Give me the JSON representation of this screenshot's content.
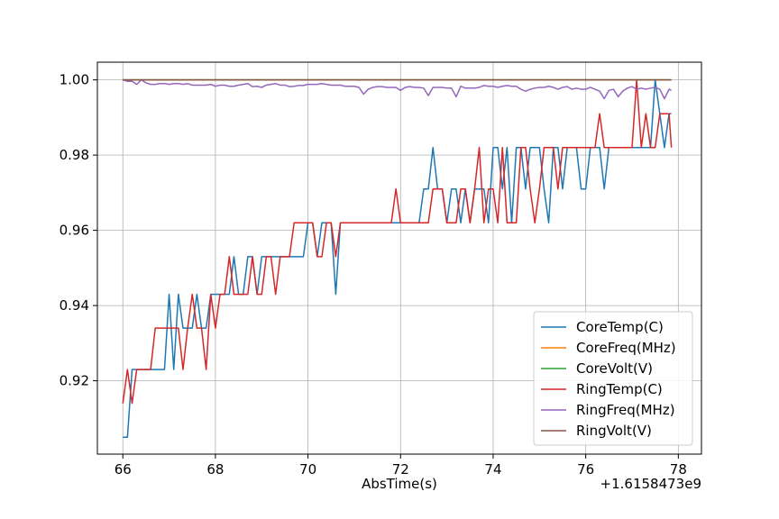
{
  "chart_data": {
    "type": "line",
    "xlabel": "AbsTime(s)",
    "x_offset_label": "+1.6158473e9",
    "xlim": [
      65.45,
      78.5
    ],
    "ylim": [
      0.9005,
      1.0047
    ],
    "xticks": [
      66,
      68,
      70,
      72,
      74,
      76,
      78
    ],
    "yticks": [
      0.92,
      0.94,
      0.96,
      0.98,
      1.0
    ],
    "ytick_labels": [
      "0.92",
      "0.94",
      "0.96",
      "0.98",
      "1.00"
    ],
    "grid": true,
    "legend_position": "lower-right",
    "x": [
      66.0,
      66.1,
      66.2,
      66.3,
      66.4,
      66.5,
      66.6,
      66.7,
      66.8,
      66.9,
      67.0,
      67.1,
      67.2,
      67.3,
      67.4,
      67.5,
      67.6,
      67.7,
      67.8,
      67.9,
      68.0,
      68.1,
      68.2,
      68.3,
      68.4,
      68.5,
      68.6,
      68.7,
      68.8,
      68.9,
      69.0,
      69.1,
      69.2,
      69.3,
      69.4,
      69.5,
      69.6,
      69.7,
      69.8,
      69.9,
      70.0,
      70.1,
      70.2,
      70.3,
      70.4,
      70.5,
      70.6,
      70.7,
      70.8,
      70.9,
      71.0,
      71.1,
      71.2,
      71.3,
      71.4,
      71.5,
      71.6,
      71.7,
      71.8,
      71.9,
      72.0,
      72.1,
      72.2,
      72.3,
      72.4,
      72.5,
      72.6,
      72.7,
      72.8,
      72.9,
      73.0,
      73.1,
      73.2,
      73.3,
      73.4,
      73.5,
      73.6,
      73.7,
      73.8,
      73.9,
      74.0,
      74.1,
      74.2,
      74.3,
      74.4,
      74.5,
      74.6,
      74.7,
      74.8,
      74.9,
      75.0,
      75.1,
      75.2,
      75.3,
      75.4,
      75.5,
      75.6,
      75.7,
      75.8,
      75.9,
      76.0,
      76.1,
      76.2,
      76.3,
      76.4,
      76.5,
      76.6,
      76.7,
      76.8,
      76.9,
      77.0,
      77.1,
      77.2,
      77.3,
      77.4,
      77.5,
      77.6,
      77.7,
      77.8,
      77.85
    ],
    "series": [
      {
        "name": "CoreTemp(C)",
        "color": "#1f77b4",
        "values": [
          0.905,
          0.905,
          0.923,
          0.923,
          0.923,
          0.923,
          0.923,
          0.923,
          0.923,
          0.923,
          0.943,
          0.923,
          0.943,
          0.934,
          0.934,
          0.934,
          0.943,
          0.934,
          0.934,
          0.943,
          0.943,
          0.943,
          0.943,
          0.943,
          0.953,
          0.943,
          0.943,
          0.953,
          0.953,
          0.943,
          0.953,
          0.953,
          0.953,
          0.953,
          0.953,
          0.953,
          0.953,
          0.953,
          0.953,
          0.953,
          0.962,
          0.962,
          0.953,
          0.962,
          0.962,
          0.962,
          0.943,
          0.962,
          0.962,
          0.962,
          0.962,
          0.962,
          0.962,
          0.962,
          0.962,
          0.962,
          0.962,
          0.962,
          0.962,
          0.962,
          0.962,
          0.962,
          0.962,
          0.962,
          0.962,
          0.971,
          0.971,
          0.982,
          0.971,
          0.971,
          0.962,
          0.971,
          0.971,
          0.962,
          0.971,
          0.962,
          0.971,
          0.971,
          0.971,
          0.962,
          0.982,
          0.982,
          0.971,
          0.982,
          0.962,
          0.982,
          0.982,
          0.971,
          0.982,
          0.982,
          0.982,
          0.971,
          0.962,
          0.982,
          0.982,
          0.971,
          0.982,
          0.982,
          0.982,
          0.971,
          0.971,
          0.982,
          0.982,
          0.982,
          0.971,
          0.982,
          0.982,
          0.982,
          0.982,
          0.982,
          0.982,
          0.982,
          0.982,
          0.982,
          0.982,
          1.0,
          0.991,
          0.982,
          0.991,
          0.991
        ]
      },
      {
        "name": "CoreFreq(MHz)",
        "color": "#ff7f0e",
        "values": [
          1.0,
          1.0,
          1.0,
          1.0,
          1.0,
          1.0,
          1.0,
          1.0,
          1.0,
          1.0,
          1.0,
          1.0,
          1.0,
          1.0,
          1.0,
          1.0,
          1.0,
          1.0,
          1.0,
          1.0,
          1.0,
          1.0,
          1.0,
          1.0,
          1.0,
          1.0,
          1.0,
          1.0,
          1.0,
          1.0,
          1.0,
          1.0,
          1.0,
          1.0,
          1.0,
          1.0,
          1.0,
          1.0,
          1.0,
          1.0,
          1.0,
          1.0,
          1.0,
          1.0,
          1.0,
          1.0,
          1.0,
          1.0,
          1.0,
          1.0,
          1.0,
          1.0,
          1.0,
          1.0,
          1.0,
          1.0,
          1.0,
          1.0,
          1.0,
          1.0,
          1.0,
          1.0,
          1.0,
          1.0,
          1.0,
          1.0,
          1.0,
          1.0,
          1.0,
          1.0,
          1.0,
          1.0,
          1.0,
          1.0,
          1.0,
          1.0,
          1.0,
          1.0,
          1.0,
          1.0,
          1.0,
          1.0,
          1.0,
          1.0,
          1.0,
          1.0,
          1.0,
          1.0,
          1.0,
          1.0,
          1.0,
          1.0,
          1.0,
          1.0,
          1.0,
          1.0,
          1.0,
          1.0,
          1.0,
          1.0,
          1.0,
          1.0,
          1.0,
          1.0,
          1.0,
          1.0,
          1.0,
          1.0,
          1.0,
          1.0,
          1.0,
          1.0,
          1.0,
          1.0,
          1.0,
          1.0,
          1.0,
          1.0,
          1.0,
          1.0
        ]
      },
      {
        "name": "CoreVolt(V)",
        "color": "#2ca02c",
        "values": [
          1.0,
          1.0,
          1.0,
          1.0,
          1.0,
          1.0,
          1.0,
          1.0,
          1.0,
          1.0,
          1.0,
          1.0,
          1.0,
          1.0,
          1.0,
          1.0,
          1.0,
          1.0,
          1.0,
          1.0,
          1.0,
          1.0,
          1.0,
          1.0,
          1.0,
          1.0,
          1.0,
          1.0,
          1.0,
          1.0,
          1.0,
          1.0,
          1.0,
          1.0,
          1.0,
          1.0,
          1.0,
          1.0,
          1.0,
          1.0,
          1.0,
          1.0,
          1.0,
          1.0,
          1.0,
          1.0,
          1.0,
          1.0,
          1.0,
          1.0,
          1.0,
          1.0,
          1.0,
          1.0,
          1.0,
          1.0,
          1.0,
          1.0,
          1.0,
          1.0,
          1.0,
          1.0,
          1.0,
          1.0,
          1.0,
          1.0,
          1.0,
          1.0,
          1.0,
          1.0,
          1.0,
          1.0,
          1.0,
          1.0,
          1.0,
          1.0,
          1.0,
          1.0,
          1.0,
          1.0,
          1.0,
          1.0,
          1.0,
          1.0,
          1.0,
          1.0,
          1.0,
          1.0,
          1.0,
          1.0,
          1.0,
          1.0,
          1.0,
          1.0,
          1.0,
          1.0,
          1.0,
          1.0,
          1.0,
          1.0,
          1.0,
          1.0,
          1.0,
          1.0,
          1.0,
          1.0,
          1.0,
          1.0,
          1.0,
          1.0,
          1.0,
          1.0,
          1.0,
          1.0,
          1.0,
          1.0,
          1.0,
          1.0,
          1.0,
          1.0
        ]
      },
      {
        "name": "RingTemp(C)",
        "color": "#d62728",
        "values": [
          0.914,
          0.923,
          0.914,
          0.923,
          0.923,
          0.923,
          0.923,
          0.934,
          0.934,
          0.934,
          0.934,
          0.934,
          0.934,
          0.923,
          0.934,
          0.943,
          0.934,
          0.934,
          0.923,
          0.943,
          0.934,
          0.943,
          0.943,
          0.953,
          0.943,
          0.943,
          0.943,
          0.943,
          0.953,
          0.943,
          0.943,
          0.953,
          0.953,
          0.943,
          0.953,
          0.953,
          0.953,
          0.962,
          0.962,
          0.962,
          0.962,
          0.962,
          0.953,
          0.953,
          0.962,
          0.962,
          0.953,
          0.962,
          0.962,
          0.962,
          0.962,
          0.962,
          0.962,
          0.962,
          0.962,
          0.962,
          0.962,
          0.962,
          0.962,
          0.971,
          0.962,
          0.962,
          0.962,
          0.962,
          0.962,
          0.962,
          0.962,
          0.971,
          0.971,
          0.971,
          0.962,
          0.962,
          0.962,
          0.971,
          0.971,
          0.962,
          0.971,
          0.982,
          0.962,
          0.971,
          0.971,
          0.962,
          0.982,
          0.962,
          0.962,
          0.962,
          0.982,
          0.982,
          0.971,
          0.962,
          0.971,
          0.982,
          0.982,
          0.982,
          0.971,
          0.982,
          0.982,
          0.982,
          0.982,
          0.982,
          0.982,
          0.982,
          0.982,
          0.991,
          0.982,
          0.982,
          0.982,
          0.982,
          0.982,
          0.982,
          0.982,
          1.0,
          0.982,
          0.991,
          0.982,
          0.982,
          0.991,
          0.991,
          0.991,
          0.982
        ]
      },
      {
        "name": "RingFreq(MHz)",
        "color": "#9467bd",
        "values": [
          1.0,
          0.9996,
          0.9996,
          0.9988,
          1.0,
          0.9992,
          0.9988,
          0.9988,
          0.999,
          0.999,
          0.9988,
          0.999,
          0.999,
          0.9988,
          0.999,
          0.9986,
          0.9986,
          0.9986,
          0.9986,
          0.9988,
          0.9983,
          0.9986,
          0.9986,
          0.9983,
          0.9983,
          0.9986,
          0.9988,
          0.999,
          0.9982,
          0.9983,
          0.998,
          0.9986,
          0.9988,
          0.999,
          0.9986,
          0.9986,
          0.9982,
          0.9983,
          0.9985,
          0.9985,
          0.9988,
          0.9988,
          0.9988,
          0.999,
          0.9988,
          0.9986,
          0.9986,
          0.9986,
          0.9983,
          0.9983,
          0.9983,
          0.998,
          0.9962,
          0.9975,
          0.998,
          0.9982,
          0.9982,
          0.998,
          0.998,
          0.998,
          0.9972,
          0.998,
          0.9982,
          0.998,
          0.998,
          0.9978,
          0.9958,
          0.998,
          0.998,
          0.998,
          0.9978,
          0.9978,
          0.9955,
          0.9983,
          0.9978,
          0.9978,
          0.9978,
          0.998,
          0.9985,
          0.9983,
          0.9983,
          0.998,
          0.9983,
          0.9985,
          0.9983,
          0.9983,
          0.9975,
          0.997,
          0.9975,
          0.9978,
          0.998,
          0.998,
          0.9983,
          0.998,
          0.9975,
          0.998,
          0.9982,
          0.9975,
          0.9978,
          0.9975,
          0.9975,
          0.998,
          0.9975,
          0.997,
          0.995,
          0.9972,
          0.9975,
          0.9955,
          0.997,
          0.9978,
          0.9982,
          0.9975,
          0.9978,
          0.9975,
          0.9978,
          0.998,
          0.9975,
          0.995,
          0.9975,
          0.9972
        ]
      },
      {
        "name": "RingVolt(V)",
        "color": "#8c564b",
        "values": [
          1.0,
          1.0,
          1.0,
          1.0,
          1.0,
          1.0,
          1.0,
          1.0,
          1.0,
          1.0,
          1.0,
          1.0,
          1.0,
          1.0,
          1.0,
          1.0,
          1.0,
          1.0,
          1.0,
          1.0,
          1.0,
          1.0,
          1.0,
          1.0,
          1.0,
          1.0,
          1.0,
          1.0,
          1.0,
          1.0,
          1.0,
          1.0,
          1.0,
          1.0,
          1.0,
          1.0,
          1.0,
          1.0,
          1.0,
          1.0,
          1.0,
          1.0,
          1.0,
          1.0,
          1.0,
          1.0,
          1.0,
          1.0,
          1.0,
          1.0,
          1.0,
          1.0,
          1.0,
          1.0,
          1.0,
          1.0,
          1.0,
          1.0,
          1.0,
          1.0,
          1.0,
          1.0,
          1.0,
          1.0,
          1.0,
          1.0,
          1.0,
          1.0,
          1.0,
          1.0,
          1.0,
          1.0,
          1.0,
          1.0,
          1.0,
          1.0,
          1.0,
          1.0,
          1.0,
          1.0,
          1.0,
          1.0,
          1.0,
          1.0,
          1.0,
          1.0,
          1.0,
          1.0,
          1.0,
          1.0,
          1.0,
          1.0,
          1.0,
          1.0,
          1.0,
          1.0,
          1.0,
          1.0,
          1.0,
          1.0,
          1.0,
          1.0,
          1.0,
          1.0,
          1.0,
          1.0,
          1.0,
          1.0,
          1.0,
          1.0,
          1.0,
          1.0,
          1.0,
          1.0,
          1.0,
          1.0,
          1.0,
          1.0,
          1.0,
          1.0
        ]
      }
    ]
  }
}
